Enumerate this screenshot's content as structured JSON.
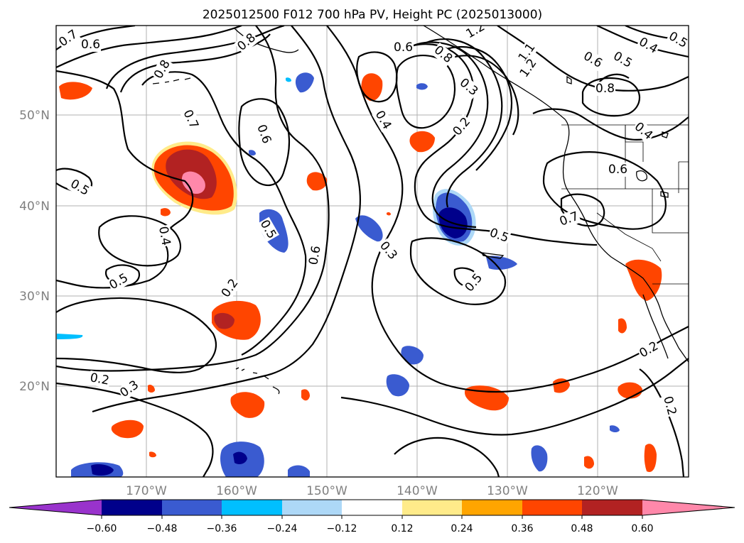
{
  "title": "2025012500 F012 700 hPa PV, Height PC (2025013000)",
  "map": {
    "lat_labels": [
      "50°N",
      "40°N",
      "30°N",
      "20°N"
    ],
    "lon_labels": [
      "170°W",
      "160°W",
      "150°W",
      "140°W",
      "130°W",
      "120°W"
    ]
  },
  "colorbar": {
    "ticks": [
      "−0.60",
      "−0.48",
      "−0.36",
      "−0.24",
      "−0.12",
      "0.12",
      "0.24",
      "0.36",
      "0.48",
      "0.60"
    ],
    "colors": {
      "under": "#9933cc",
      "neg_060": "#00008b",
      "neg_048": "#3a5bd0",
      "neg_036": "#00bfff",
      "neg_024": "#add8f7",
      "neutral": "#ffffff",
      "pos_012": "#ffeb8a",
      "pos_024": "#ffa500",
      "pos_036": "#ff4500",
      "pos_048": "#b22222",
      "over": "#ff88aa"
    }
  },
  "contour_labels": [
    "0.7",
    "0.6",
    "0.8",
    "0.7",
    "0.5",
    "0.4",
    "0.6",
    "0.8",
    "0.6",
    "0.4",
    "0.6",
    "0.8",
    "0.3",
    "0.2",
    "0.5",
    "0.5",
    "0.5",
    "0.2",
    "0.3",
    "0.2",
    "0.3",
    "0.6",
    "0.5",
    "0.5",
    "0.6",
    "0.7",
    "0.2",
    "0.2",
    "0.4",
    "0.5",
    "0.8",
    "0.4",
    "1.1",
    "1.2",
    "1.2"
  ]
}
